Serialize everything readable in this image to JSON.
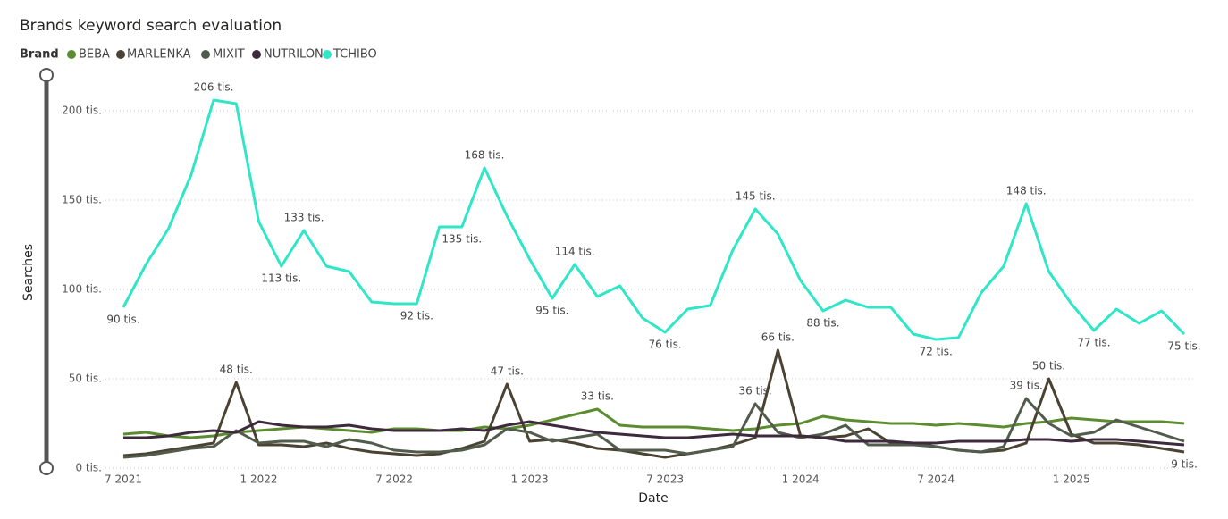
{
  "chart_data": {
    "type": "line",
    "title": "Brands keyword search evaluation",
    "legend_title": "Brand",
    "x_label": "Date",
    "y_label": "Searches",
    "categories": [
      "7 2021",
      null,
      null,
      null,
      null,
      null,
      "1 2022",
      null,
      null,
      null,
      null,
      null,
      "7 2022",
      null,
      null,
      null,
      null,
      null,
      "1 2023",
      null,
      null,
      null,
      null,
      null,
      "7 2023",
      null,
      null,
      null,
      null,
      null,
      "1 2024",
      null,
      null,
      null,
      null,
      null,
      "7 2024",
      null,
      null,
      null,
      null,
      null,
      "1 2025",
      null,
      null,
      null,
      null,
      null
    ],
    "ylim": [
      0,
      210000
    ],
    "yticks": [
      {
        "value": 0,
        "label": "0 tis."
      },
      {
        "value": 50000,
        "label": "50 tis."
      },
      {
        "value": 100000,
        "label": "100 tis."
      },
      {
        "value": 150000,
        "label": "150 tis."
      },
      {
        "value": 200000,
        "label": "200 tis."
      }
    ],
    "grid": true,
    "series": [
      {
        "name": "BEBA",
        "color": "#5c8c30",
        "values": [
          19000,
          20000,
          18000,
          17000,
          18000,
          20000,
          21000,
          22000,
          23000,
          22000,
          21000,
          20000,
          22000,
          22000,
          21000,
          21000,
          23000,
          22000,
          24000,
          27000,
          30000,
          33000,
          24000,
          23000,
          23000,
          23000,
          22000,
          21000,
          22000,
          24000,
          25000,
          29000,
          27000,
          26000,
          25000,
          25000,
          24000,
          25000,
          24000,
          23000,
          25000,
          26000,
          28000,
          27000,
          26000,
          26000,
          26000,
          25000
        ],
        "value_labels": [
          null,
          null,
          null,
          null,
          null,
          null,
          null,
          null,
          null,
          null,
          null,
          null,
          null,
          null,
          null,
          null,
          null,
          null,
          null,
          null,
          null,
          "33 tis.",
          null,
          null,
          null,
          null,
          null,
          null,
          null,
          null,
          null,
          null,
          null,
          null,
          null,
          null,
          null,
          null,
          null,
          null,
          null,
          null,
          null,
          null,
          null,
          null,
          null,
          null
        ]
      },
      {
        "name": "MARLENKA",
        "color": "#4a4232",
        "values": [
          7000,
          8000,
          10000,
          12000,
          14000,
          48000,
          13000,
          13000,
          12000,
          14000,
          11000,
          9000,
          8000,
          7000,
          8000,
          11000,
          15000,
          47000,
          15000,
          16000,
          14000,
          11000,
          10000,
          8000,
          6000,
          8000,
          10000,
          13000,
          17000,
          66000,
          18000,
          17000,
          18000,
          22000,
          14000,
          14000,
          12000,
          10000,
          9000,
          10000,
          14000,
          50000,
          19000,
          14000,
          14000,
          13000,
          11000,
          9000
        ],
        "value_labels": [
          null,
          null,
          null,
          null,
          null,
          "48 tis.",
          null,
          null,
          null,
          null,
          null,
          null,
          null,
          null,
          null,
          null,
          null,
          "47 tis.",
          null,
          null,
          null,
          null,
          null,
          null,
          null,
          null,
          null,
          null,
          null,
          "66 tis.",
          null,
          null,
          null,
          null,
          null,
          null,
          null,
          null,
          null,
          null,
          null,
          "50 tis.",
          null,
          null,
          null,
          null,
          null,
          "9 tis."
        ]
      },
      {
        "name": "MIXIT",
        "color": "#525c4c",
        "values": [
          6000,
          7000,
          9000,
          11000,
          12000,
          21000,
          14000,
          15000,
          15000,
          12000,
          16000,
          14000,
          10000,
          9000,
          9000,
          10000,
          13000,
          22000,
          20000,
          15000,
          17000,
          19000,
          10000,
          10000,
          10000,
          8000,
          10000,
          12000,
          36000,
          20000,
          17000,
          19000,
          24000,
          13000,
          13000,
          13000,
          12000,
          10000,
          9000,
          12000,
          39000,
          25000,
          18000,
          20000,
          27000,
          23000,
          19000,
          15000
        ],
        "value_labels": [
          null,
          null,
          null,
          null,
          null,
          null,
          null,
          null,
          null,
          null,
          null,
          null,
          null,
          null,
          null,
          null,
          null,
          null,
          null,
          null,
          null,
          null,
          null,
          null,
          null,
          null,
          null,
          null,
          "36 tis.",
          null,
          null,
          null,
          null,
          null,
          null,
          null,
          null,
          null,
          null,
          null,
          "39 tis.",
          null,
          null,
          null,
          null,
          null,
          null,
          null
        ]
      },
      {
        "name": "NUTRILON",
        "color": "#3d2b3d",
        "values": [
          17000,
          17000,
          18000,
          20000,
          21000,
          20000,
          26000,
          24000,
          23000,
          23000,
          24000,
          22000,
          21000,
          21000,
          21000,
          22000,
          21000,
          24000,
          26000,
          24000,
          22000,
          20000,
          19000,
          18000,
          17000,
          17000,
          18000,
          19000,
          18000,
          18000,
          18000,
          17000,
          15000,
          15000,
          15000,
          14000,
          14000,
          15000,
          15000,
          15000,
          16000,
          16000,
          15000,
          16000,
          16000,
          15000,
          14000,
          13000
        ]
      },
      {
        "name": "TCHIBO",
        "color": "#2fe6c6",
        "values": [
          90000,
          114000,
          134000,
          164000,
          206000,
          204000,
          138000,
          113000,
          133000,
          113000,
          110000,
          93000,
          92000,
          92000,
          135000,
          135000,
          168000,
          141000,
          117000,
          95000,
          114000,
          96000,
          102000,
          84000,
          76000,
          89000,
          91000,
          122000,
          145000,
          131000,
          105000,
          88000,
          94000,
          90000,
          90000,
          75000,
          72000,
          73000,
          98000,
          113000,
          148000,
          110000,
          92000,
          77000,
          89000,
          81000,
          88000,
          75000
        ],
        "value_labels": [
          "90 tis.",
          null,
          null,
          null,
          "206 tis.",
          null,
          null,
          "113 tis.",
          "133 tis.",
          null,
          null,
          null,
          null,
          "92 tis.",
          null,
          "135 tis.",
          "168 tis.",
          null,
          null,
          "95 tis.",
          "114 tis.",
          null,
          null,
          null,
          "76 tis.",
          null,
          null,
          null,
          "145 tis.",
          null,
          null,
          "88 tis.",
          null,
          null,
          null,
          null,
          "72 tis.",
          null,
          null,
          null,
          "148 tis.",
          null,
          null,
          "77 tis.",
          null,
          null,
          null,
          "75 tis."
        ]
      }
    ]
  }
}
